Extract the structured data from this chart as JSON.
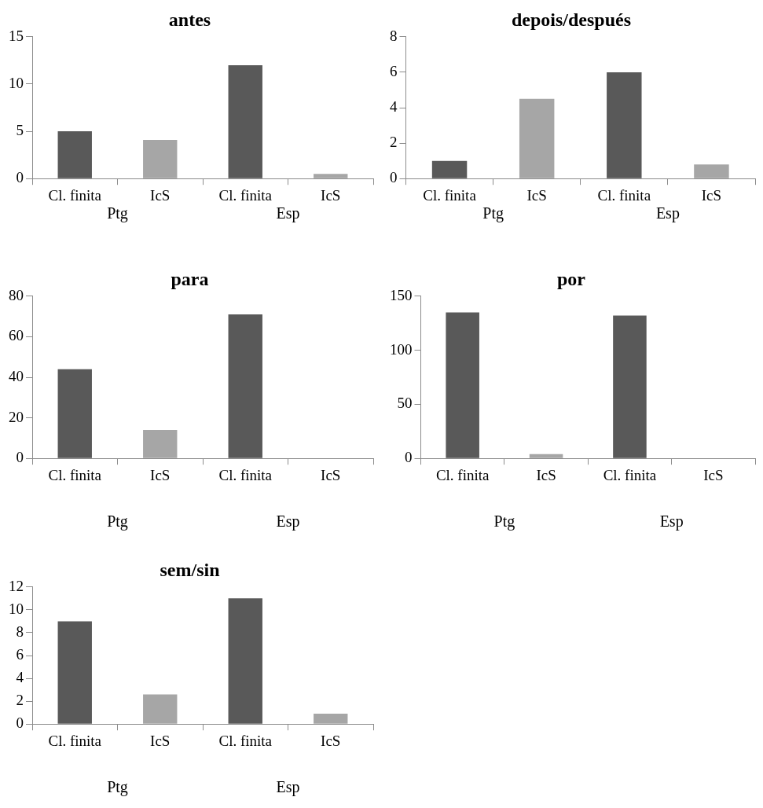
{
  "chart_data": [
    {
      "type": "bar",
      "title": "antes",
      "categories": [
        "Cl. finita",
        "IcS",
        "Cl. finita",
        "IcS"
      ],
      "values": [
        5,
        4.1,
        12,
        0.5
      ],
      "colors": [
        "#595959",
        "#a6a6a6",
        "#595959",
        "#a6a6a6"
      ],
      "ylim": [
        0,
        15
      ],
      "yticks": [
        0,
        5,
        10,
        15
      ],
      "annotations": [
        "Ptg",
        "Esp"
      ]
    },
    {
      "type": "bar",
      "title": "depois/después",
      "categories": [
        "Cl. finita",
        "IcS",
        "Cl. finita",
        "IcS"
      ],
      "values": [
        1,
        4.5,
        6,
        0.8
      ],
      "colors": [
        "#595959",
        "#a6a6a6",
        "#595959",
        "#a6a6a6"
      ],
      "ylim": [
        0,
        8
      ],
      "yticks": [
        0,
        2,
        4,
        6,
        8
      ],
      "annotations": [
        "Ptg",
        "Esp"
      ]
    },
    {
      "type": "bar",
      "title": "para",
      "categories": [
        "Cl. finita",
        "IcS",
        "Cl. finita",
        "IcS"
      ],
      "values": [
        44,
        14,
        71,
        0
      ],
      "colors": [
        "#595959",
        "#a6a6a6",
        "#595959",
        "#a6a6a6"
      ],
      "ylim": [
        0,
        80
      ],
      "yticks": [
        0,
        20,
        40,
        60,
        80
      ],
      "annotations": [
        "Ptg",
        "Esp"
      ]
    },
    {
      "type": "bar",
      "title": "por",
      "categories": [
        "Cl. finita",
        "IcS",
        "Cl. finita",
        "IcS"
      ],
      "values": [
        135,
        4,
        132,
        null
      ],
      "colors": [
        "#595959",
        "#a6a6a6",
        "#595959",
        "#a6a6a6"
      ],
      "ylim": [
        0,
        150
      ],
      "yticks": [
        0,
        50,
        100,
        150
      ],
      "annotations": [
        "Ptg",
        "Esp"
      ]
    },
    {
      "type": "bar",
      "title": "sem/sin",
      "categories": [
        "Cl. finita",
        "IcS",
        "Cl. finita",
        "IcS"
      ],
      "values": [
        9,
        2.6,
        11,
        0.9
      ],
      "colors": [
        "#595959",
        "#a6a6a6",
        "#595959",
        "#a6a6a6"
      ],
      "ylim": [
        0,
        12
      ],
      "yticks": [
        0,
        2,
        4,
        6,
        8,
        10,
        12
      ],
      "annotations": [
        "Ptg",
        "Esp"
      ]
    }
  ]
}
